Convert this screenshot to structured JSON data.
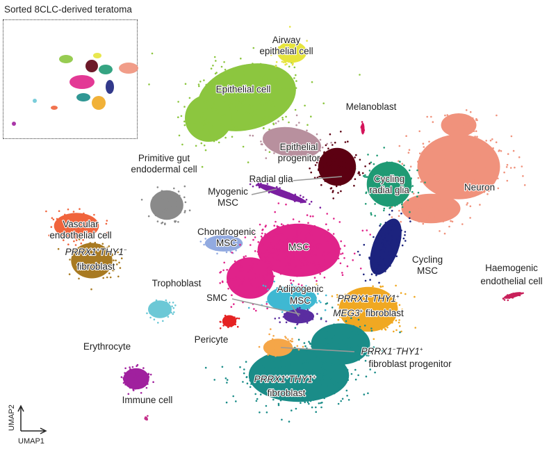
{
  "chart_data": {
    "type": "scatter",
    "title": "",
    "inset_title": "Sorted 8CLC-derived teratoma",
    "xlabel": "UMAP1",
    "ylabel": "UMAP2",
    "grid": false,
    "axis_ticks": false,
    "clusters": [
      {
        "name": "Airway epithelial cell",
        "color": "#e6e43c"
      },
      {
        "name": "Epithelial cell",
        "color": "#8cc63f"
      },
      {
        "name": "Melanoblast",
        "color": "#d4145a"
      },
      {
        "name": "Epithelial progenitor",
        "color": "#b8909e"
      },
      {
        "name": "Radial glia",
        "color": "#5c0012"
      },
      {
        "name": "Cycling radial glia",
        "color": "#1f9a74"
      },
      {
        "name": "Neuron",
        "color": "#f0927c"
      },
      {
        "name": "Primitive gut endodermal cell",
        "color": "#8a8a8a"
      },
      {
        "name": "Myogenic MSC",
        "color": "#7a1fa0"
      },
      {
        "name": "Chondrogenic MSC",
        "color": "#92aae0"
      },
      {
        "name": "MSC",
        "color": "#e0238a"
      },
      {
        "name": "Cycling MSC",
        "color": "#1c237e"
      },
      {
        "name": "Vascular endothelial cell",
        "color": "#f0643c"
      },
      {
        "name": "PRRX1+THY1- fibroblast",
        "color": "#a87a22"
      },
      {
        "name": "Trophoblast",
        "color": "#6cc8d6"
      },
      {
        "name": "SMC",
        "color": "#5a2da0"
      },
      {
        "name": "Adipogenic MSC",
        "color": "#3fb8d2"
      },
      {
        "name": "PRRX1-THY1+MEG3+ fibroblast",
        "color": "#f0a822"
      },
      {
        "name": "Pericyte",
        "color": "#e52222"
      },
      {
        "name": "PRRX1-THY1+ fibroblast progenitor",
        "color": "#f5a648"
      },
      {
        "name": "PRRX1+THY1+ fibroblast",
        "color": "#1a8c88"
      },
      {
        "name": "Erythrocyte",
        "color": "#c4308a"
      },
      {
        "name": "Immune cell",
        "color": "#a0209e"
      },
      {
        "name": "Haemogenic endothelial cell",
        "color": "#c8205a"
      }
    ],
    "labels": {
      "airway": [
        "Airway",
        "epithelial cell"
      ],
      "epithelial": "Epithelial cell",
      "melanoblast": "Melanoblast",
      "epi_prog": [
        "Epithelial",
        "progenitor"
      ],
      "primitive_gut": [
        "Primitive gut",
        "endodermal cell"
      ],
      "radial_glia": "Radial glia",
      "cycling_rg": [
        "Cycling",
        "radial glia"
      ],
      "neuron": "Neuron",
      "myogenic": [
        "Myogenic",
        "MSC"
      ],
      "chondro": [
        "Chondrogenic",
        "MSC"
      ],
      "msc": "MSC",
      "cycling_msc": [
        "Cycling",
        "MSC"
      ],
      "vascular": [
        "Vascular",
        "endothelial cell"
      ],
      "fib1": {
        "gene1": "PRRX1",
        "sup1": "+",
        "gene2": "THY1",
        "sup2": "−",
        "line2": "fibroblast"
      },
      "trophoblast": "Trophoblast",
      "smc": "SMC",
      "adipo": [
        "Adipogenic",
        "MSC"
      ],
      "meg3": {
        "gene1": "PRRX1",
        "sup1": "−",
        "gene2": "THY1",
        "sup2": "+",
        "gene3": "MEG3",
        "sup3": "+",
        "tail": " fibroblast"
      },
      "pericyte": "Pericyte",
      "progenitor": {
        "gene1": "PRRX1",
        "sup1": "−",
        "gene2": "THY1",
        "sup2": "+",
        "line2": "fibroblast progenitor"
      },
      "fib2": {
        "gene1": "PRRX1",
        "sup1": "+",
        "gene2": "THY1",
        "sup2": "+",
        "line2": "fibroblast"
      },
      "erythrocyte": "Erythrocyte",
      "immune": "Immune cell",
      "haemogenic": [
        "Haemogenic",
        "endothelial cell"
      ]
    }
  }
}
